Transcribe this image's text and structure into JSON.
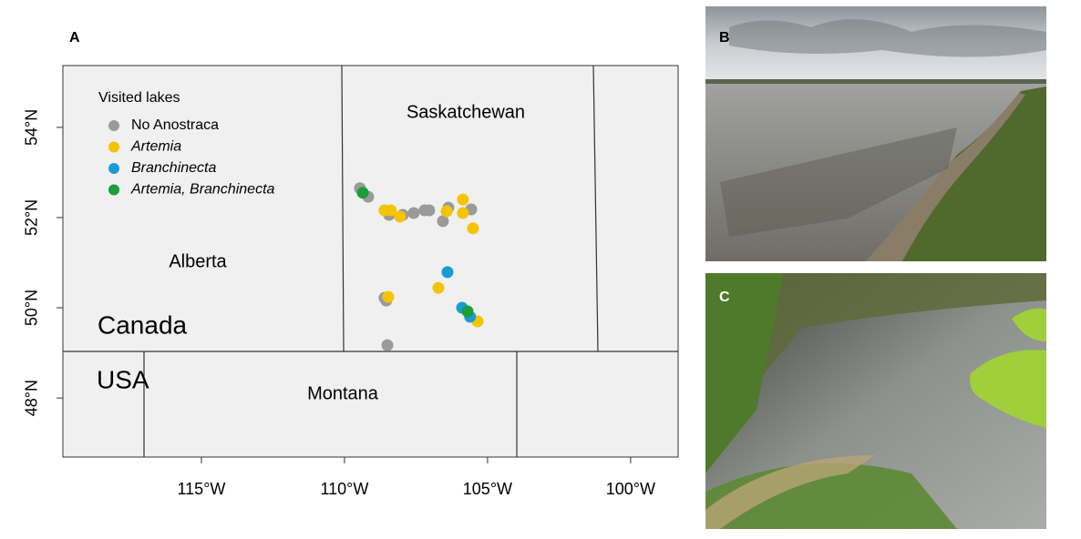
{
  "panels": [
    "A",
    "B",
    "C"
  ],
  "chart_data": {
    "type": "scatter",
    "xlim": [
      -119.84,
      -98.34
    ],
    "ylim": [
      46.69,
      55.37
    ],
    "xticks": [
      {
        "value": -115,
        "label": "115°W"
      },
      {
        "value": -110,
        "label": "110°W"
      },
      {
        "value": -105,
        "label": "105°W"
      },
      {
        "value": -100,
        "label": "100°W"
      }
    ],
    "yticks": [
      {
        "value": 48,
        "label": "48°N"
      },
      {
        "value": 50,
        "label": "50°N"
      },
      {
        "value": 52,
        "label": "52°N"
      },
      {
        "value": 54,
        "label": "54°N"
      }
    ],
    "legend_title": "Visited lakes",
    "legend_position": "upper left",
    "region_labels": [
      "Saskatchewan",
      "Alberta",
      "Canada",
      "USA",
      "Montana"
    ],
    "series": [
      {
        "name": "No Anostraca",
        "color": "#9a9a9a",
        "italic": false,
        "x": [
          -109.46,
          -109.17,
          -108.44,
          -107.96,
          -107.58,
          -107.2,
          -107.04,
          -106.56,
          -106.37,
          -105.57,
          -108.6,
          -108.54,
          -108.5
        ],
        "values": [
          52.65,
          52.46,
          52.06,
          52.06,
          52.1,
          52.16,
          52.16,
          51.92,
          52.22,
          52.18,
          50.22,
          50.16,
          49.17
        ]
      },
      {
        "name": "Artemia",
        "color": "#f5c400",
        "italic": true,
        "x": [
          -108.6,
          -108.38,
          -108.06,
          -106.43,
          -105.86,
          -105.86,
          -105.51,
          -108.47,
          -106.72,
          -105.35
        ],
        "values": [
          52.16,
          52.16,
          52.02,
          52.14,
          52.4,
          52.1,
          51.76,
          50.24,
          50.44,
          49.7
        ]
      },
      {
        "name": "Branchinecta",
        "color": "#1a9bd7",
        "italic": true,
        "x": [
          -106.4,
          -105.89,
          -105.61
        ],
        "values": [
          50.79,
          50.0,
          49.8
        ]
      },
      {
        "name": "Artemia, Branchinecta",
        "color": "#1a9e3a",
        "italic": true,
        "x": [
          -109.36,
          -105.7
        ],
        "values": [
          52.55,
          49.92
        ]
      }
    ]
  }
}
